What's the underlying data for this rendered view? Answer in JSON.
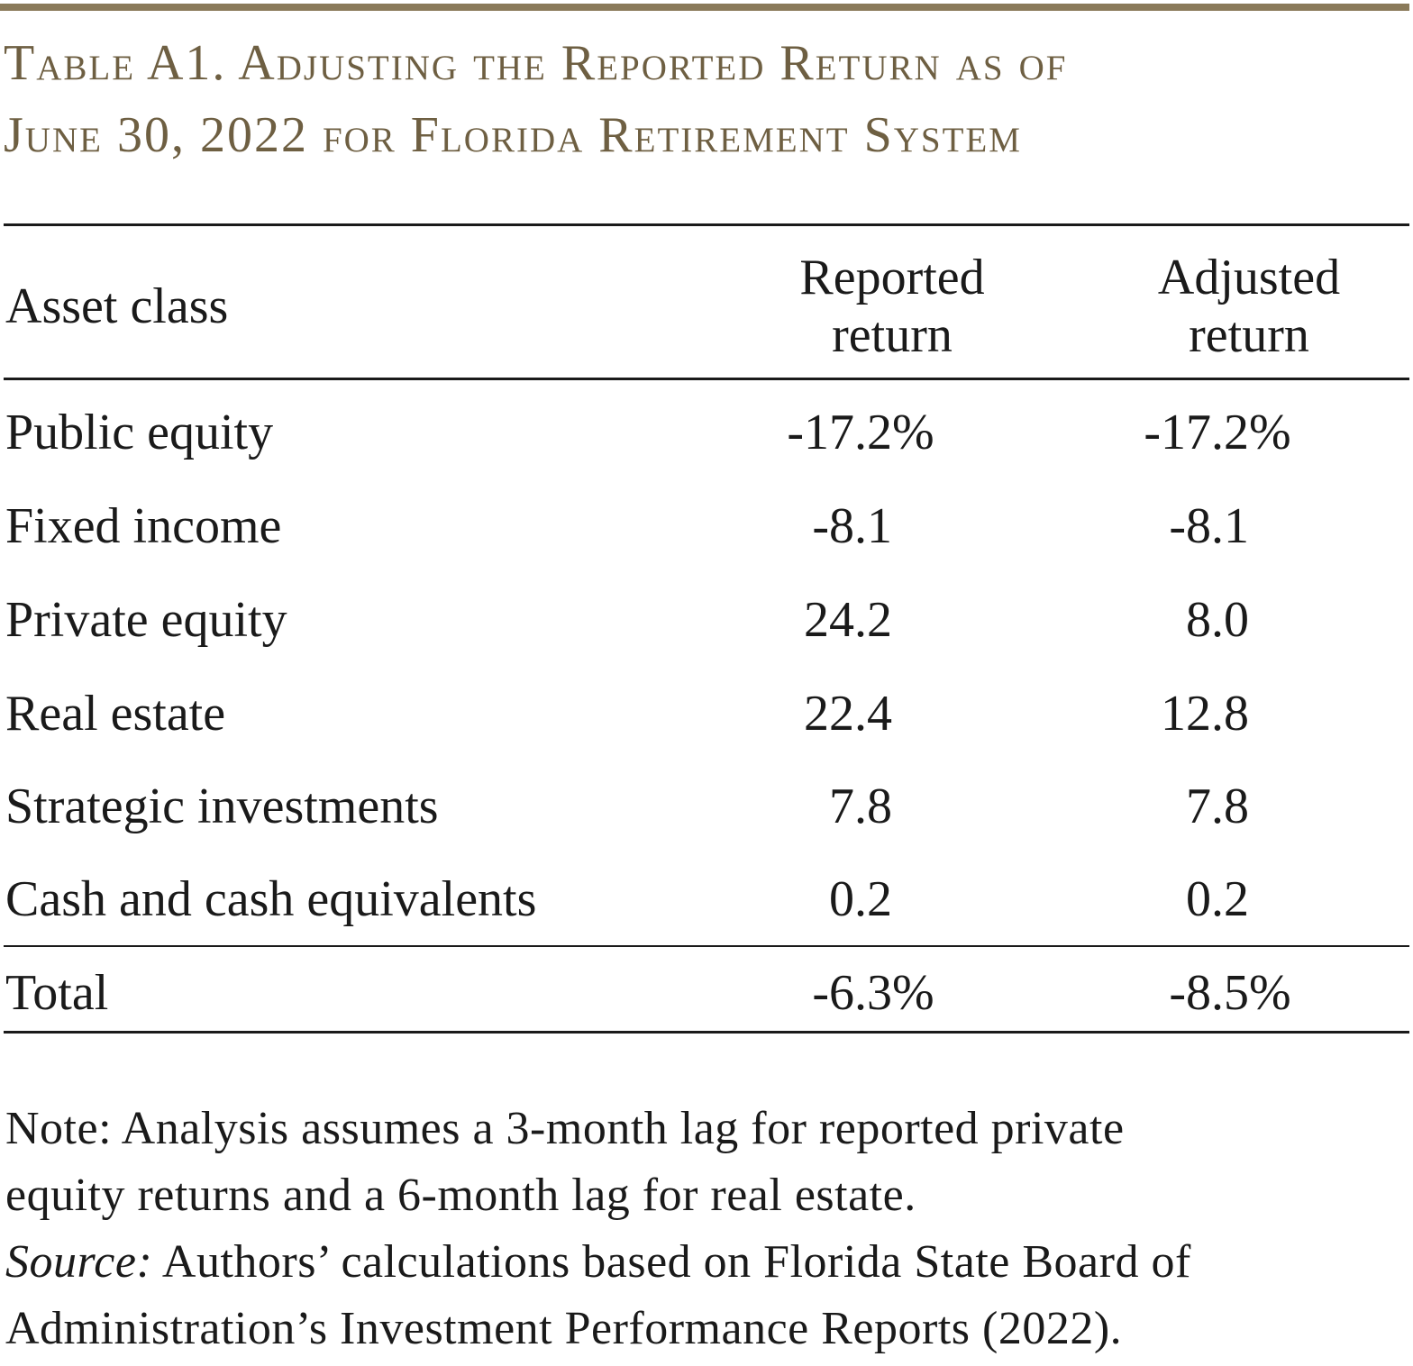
{
  "title": {
    "line1": "Table A1. Adjusting the Reported Return as of",
    "line2": "June 30, 2022 for Florida Retirement System"
  },
  "table": {
    "headers": {
      "asset_class": "Asset class",
      "reported_line1": "Reported",
      "reported_line2": "return",
      "adjusted_line1": "Adjusted",
      "adjusted_line2": "return"
    },
    "rows": [
      {
        "label": "Public equity",
        "reported": "-17.2",
        "reported_suffix": "%",
        "adjusted": "-17.2",
        "adjusted_suffix": "%"
      },
      {
        "label": "Fixed income",
        "reported": "-8.1",
        "reported_suffix": "",
        "adjusted": "-8.1",
        "adjusted_suffix": ""
      },
      {
        "label": "Private equity",
        "reported": "24.2",
        "reported_suffix": "",
        "adjusted": "8.0",
        "adjusted_suffix": ""
      },
      {
        "label": "Real estate",
        "reported": "22.4",
        "reported_suffix": "",
        "adjusted": "12.8",
        "adjusted_suffix": ""
      },
      {
        "label": "Strategic investments",
        "reported": "7.8",
        "reported_suffix": "",
        "adjusted": "7.8",
        "adjusted_suffix": ""
      },
      {
        "label": "Cash and cash equivalents",
        "reported": "0.2",
        "reported_suffix": "",
        "adjusted": "0.2",
        "adjusted_suffix": ""
      }
    ],
    "total": {
      "label": "Total",
      "reported": "-6.3",
      "reported_suffix": "%",
      "adjusted": "-8.5",
      "adjusted_suffix": "%"
    }
  },
  "notes": {
    "note_line1": "Note: Analysis assumes a 3-month lag for reported private",
    "note_line2": "equity returns and a 6-month lag for real estate.",
    "source_label": "Source:",
    "source_line1": " Authors’ calculations based on Florida State Board of",
    "source_line2": "Administration’s Investment Performance Reports (2022)."
  },
  "colors": {
    "title": "#6e5f42",
    "top_rule": "#8a7a5a",
    "text": "#1a1a1a"
  }
}
